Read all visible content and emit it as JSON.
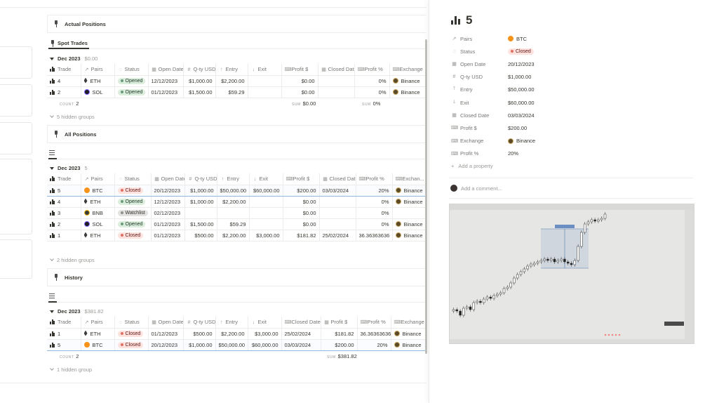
{
  "sections": {
    "actual_positions": {
      "title": "Actual Positions",
      "tab": "Spot Trades"
    },
    "all_positions": {
      "title": "All Positions"
    },
    "history": {
      "title": "History"
    }
  },
  "columns_a": [
    "Trade",
    "Pairs",
    "Status",
    "Open Date",
    "Q-ty USD",
    "Entry",
    "Exit",
    "Profit $",
    "Closed Date",
    "Profit %",
    "Exchange"
  ],
  "columns_b": [
    "Trade",
    "Pairs",
    "Status",
    "Open Date",
    "Q-ty USD",
    "Entry",
    "Exit",
    "Profit $",
    "Closed Date",
    "Profit %",
    "Exchan..."
  ],
  "columns_c": [
    "Trade",
    "Pairs",
    "Status",
    "Open Date",
    "Q-ty USD",
    "Entry",
    "Exit",
    "Closed Date",
    "Profit $",
    "Profit %",
    "Exchange"
  ],
  "spot": {
    "group": "Dec 2023",
    "group_value": "$0.00",
    "rows": [
      {
        "trade": "4",
        "pair": "ETH",
        "status": "Opened",
        "open": "12/12/2023",
        "qty": "$1,000.00",
        "entry": "$2,200.00",
        "exit": "",
        "profit": "$0.00",
        "closed": "",
        "pct": "0%",
        "exchange": "Binance"
      },
      {
        "trade": "2",
        "pair": "SOL",
        "status": "Opened",
        "open": "01/12/2023",
        "qty": "$1,500.00",
        "entry": "$59.29",
        "exit": "",
        "profit": "$0.00",
        "closed": "",
        "pct": "0%",
        "exchange": "Binance"
      }
    ],
    "count_label": "COUNT",
    "count": "2",
    "sum_label": "SUM",
    "sum_profit": "$0.00",
    "sum_pct": "0%",
    "hidden": "5 hidden groups"
  },
  "all": {
    "group": "Dec 2023",
    "group_value": "5",
    "rows": [
      {
        "trade": "5",
        "pair": "BTC",
        "status": "Closed",
        "open": "20/12/2023",
        "qty": "$1,000.00",
        "entry": "$50,000.00",
        "exit": "$60,000.00",
        "profit": "$200.00",
        "closed": "03/03/2024",
        "pct": "20%",
        "exchange": "Binance"
      },
      {
        "trade": "4",
        "pair": "ETH",
        "status": "Opened",
        "open": "12/12/2023",
        "qty": "$1,000.00",
        "entry": "$2,200.00",
        "exit": "",
        "profit": "$0.00",
        "closed": "",
        "pct": "0%",
        "exchange": "Binance"
      },
      {
        "trade": "3",
        "pair": "BNB",
        "status": "Watchlist",
        "open": "02/12/2023",
        "qty": "",
        "entry": "",
        "exit": "",
        "profit": "$0.00",
        "closed": "",
        "pct": "0%",
        "exchange": ""
      },
      {
        "trade": "2",
        "pair": "SOL",
        "status": "Opened",
        "open": "01/12/2023",
        "qty": "$1,500.00",
        "entry": "$59.29",
        "exit": "",
        "profit": "$0.00",
        "closed": "",
        "pct": "0%",
        "exchange": "Binance"
      },
      {
        "trade": "1",
        "pair": "ETH",
        "status": "Closed",
        "open": "01/12/2023",
        "qty": "$500.00",
        "entry": "$2,200.00",
        "exit": "$3,000.00",
        "profit": "$181.82",
        "closed": "25/02/2024",
        "pct": "36.36363636",
        "exchange": "Binance"
      }
    ],
    "hidden": "2 hidden groups"
  },
  "history": {
    "group": "Dec 2023",
    "group_value": "$381.82",
    "rows": [
      {
        "trade": "1",
        "pair": "ETH",
        "status": "Closed",
        "open": "01/12/2023",
        "qty": "$500.00",
        "entry": "$2,200.00",
        "exit": "$3,000.00",
        "closed": "25/02/2024",
        "profit": "$181.82",
        "pct": "36.36363636",
        "exchange": "Binance"
      },
      {
        "trade": "5",
        "pair": "BTC",
        "status": "Closed",
        "open": "20/12/2023",
        "qty": "$1,000.00",
        "entry": "$50,000.00",
        "exit": "$60,000.00",
        "closed": "03/03/2024",
        "profit": "$200.00",
        "pct": "20%",
        "exchange": "Binance"
      }
    ],
    "count_label": "COUNT",
    "count": "2",
    "sum_label": "SUM",
    "sum_profit": "$381.82",
    "hidden": "1 hidden group"
  },
  "panel": {
    "title": "5",
    "props": [
      {
        "key": "Pairs",
        "icon": "↗",
        "value": "BTC",
        "kind": "coin-btc"
      },
      {
        "key": "Status",
        "icon": "◌",
        "value": "Closed",
        "kind": "pill-closed"
      },
      {
        "key": "Open Date",
        "icon": "▦",
        "value": "20/12/2023",
        "kind": "text"
      },
      {
        "key": "Q-ty USD",
        "icon": "#",
        "value": "$1,000.00",
        "kind": "text"
      },
      {
        "key": "Entry",
        "icon": "🡑",
        "value": "$50,000.00",
        "kind": "text"
      },
      {
        "key": "Exit",
        "icon": "🡓",
        "value": "$60,000.00",
        "kind": "text"
      },
      {
        "key": "Closed Date",
        "icon": "▦",
        "value": "03/03/2024",
        "kind": "text"
      },
      {
        "key": "Profit $",
        "icon": "⌨",
        "value": "$200.00",
        "kind": "text"
      },
      {
        "key": "Exchange",
        "icon": "⌨",
        "value": "Binance",
        "kind": "exchange"
      },
      {
        "key": "Profit %",
        "icon": "⌨",
        "value": "20%",
        "kind": "text"
      }
    ],
    "add_property": "Add a property",
    "comment_placeholder": "Add a comment..."
  },
  "colors": {
    "accent_blue": "#93b8de",
    "closed_red": "#e16f64",
    "opened_green": "#6c9b7d",
    "btc_orange": "#f7931a"
  },
  "icons": [
    "bar-chart-icon",
    "arrow-up-right-icon",
    "status-dashed-circle-icon",
    "calendar-icon",
    "hash-icon",
    "arrow-up-icon",
    "arrow-down-icon",
    "keyboard-icon",
    "pin-icon",
    "list-icon",
    "plus-icon"
  ]
}
